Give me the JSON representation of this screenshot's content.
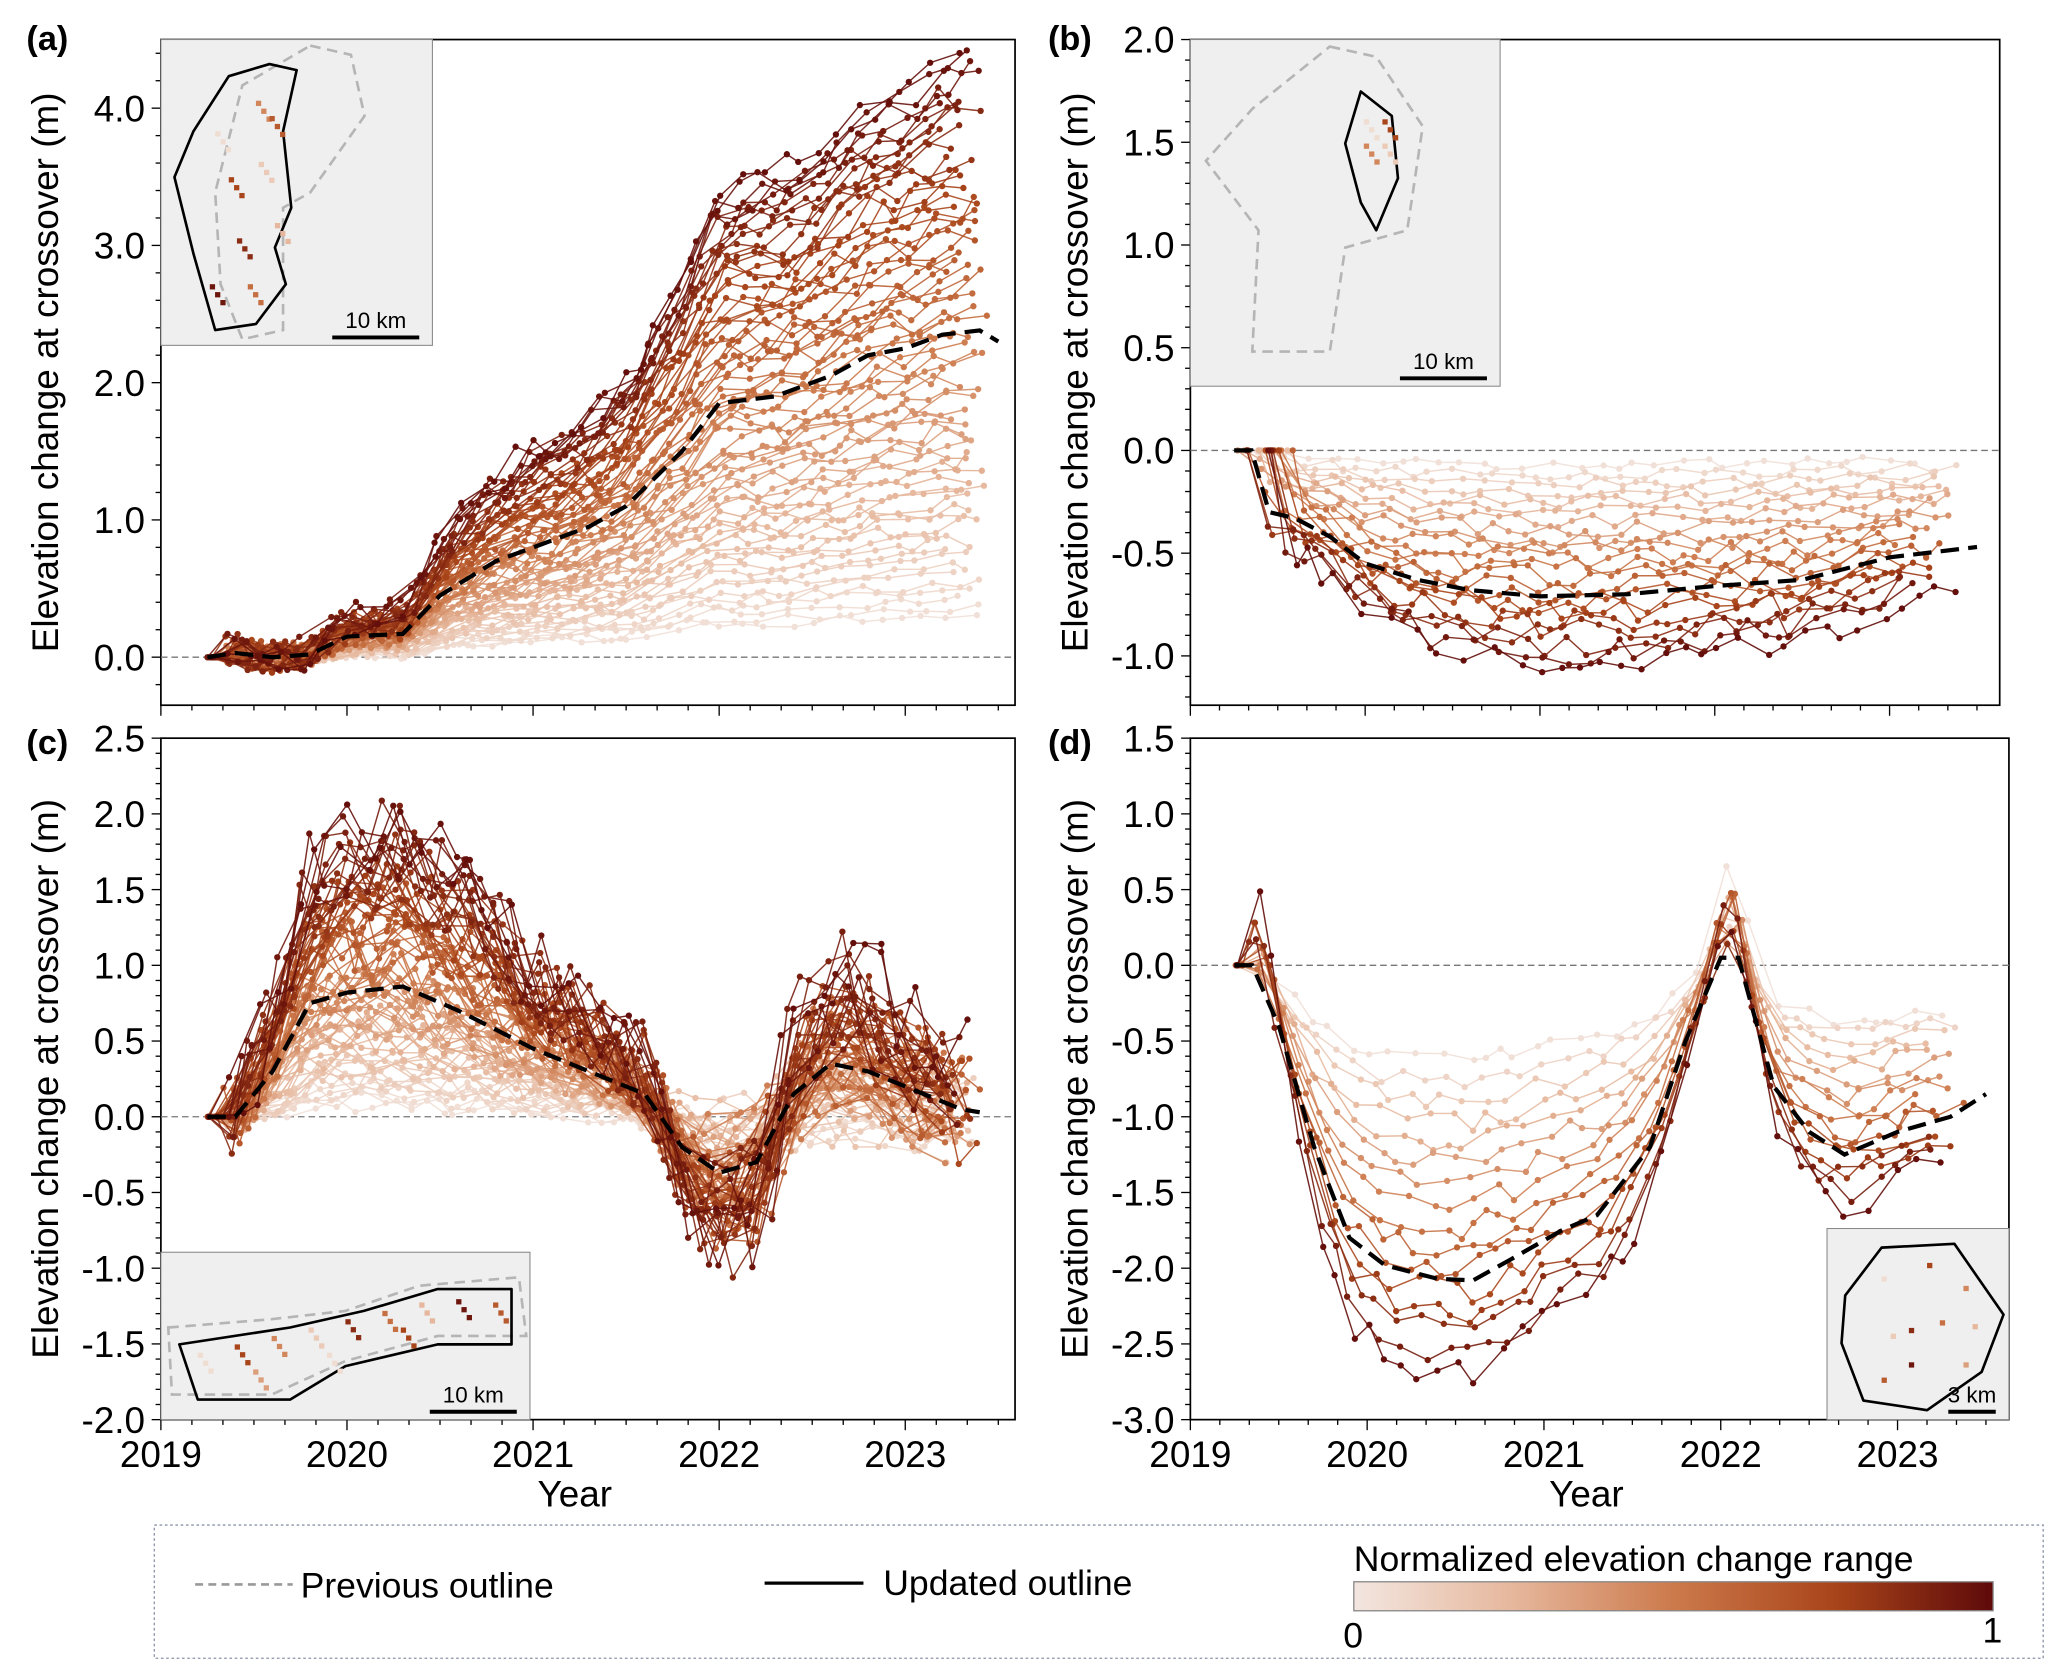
{
  "chart_data": [
    {
      "panel": "(a)",
      "type": "line",
      "xlabel": "",
      "ylabel": "Elevation change at crossover (m)",
      "xlim": [
        2019,
        2023.59
      ],
      "ylim": [
        -0.35,
        4.5
      ],
      "xticks": [
        2019,
        2020,
        2021,
        2022,
        2023
      ],
      "yticks": [
        0.0,
        1.0,
        2.0,
        3.0,
        4.0
      ],
      "ytick_labels": [
        "0.0",
        "1.0",
        "2.0",
        "3.0",
        "4.0"
      ],
      "mean_series": {
        "name": "Mean",
        "x": [
          2019.25,
          2019.4,
          2019.6,
          2019.8,
          2020.0,
          2020.3,
          2020.5,
          2020.8,
          2021.0,
          2021.3,
          2021.5,
          2021.8,
          2022.0,
          2022.3,
          2022.6,
          2022.8,
          2023.0,
          2023.2,
          2023.4,
          2023.5
        ],
        "y": [
          0,
          0.03,
          0,
          0.02,
          0.15,
          0.17,
          0.45,
          0.7,
          0.8,
          0.95,
          1.1,
          1.5,
          1.85,
          1.9,
          2.05,
          2.2,
          2.25,
          2.35,
          2.38,
          2.3
        ]
      },
      "n_series": 70,
      "scale_range": [
        0.13,
        1.85
      ],
      "noise": 0.06,
      "start_range": [
        2019.25,
        2019.35
      ],
      "end_range": [
        2023.3,
        2023.45
      ],
      "inset_scalebar": "10 km"
    },
    {
      "panel": "(b)",
      "type": "line",
      "xlabel": "",
      "ylabel": "Elevation change at crossover (m)",
      "xlim": [
        2019,
        2023.63
      ],
      "ylim": [
        -1.24,
        2.0
      ],
      "xticks": [
        2019,
        2020,
        2021,
        2022,
        2023
      ],
      "yticks": [
        -1.0,
        -0.5,
        0.0,
        0.5,
        1.0,
        1.5,
        2.0
      ],
      "ytick_labels": [
        "-1.0",
        "-0.5",
        "0.0",
        "0.5",
        "1.0",
        "1.5",
        "2.0"
      ],
      "mean_series": {
        "name": "Mean",
        "x": [
          2019.25,
          2019.35,
          2019.45,
          2019.6,
          2019.8,
          2020.0,
          2020.3,
          2020.6,
          2021.0,
          2021.5,
          2022.0,
          2022.5,
          2023.0,
          2023.5
        ],
        "y": [
          0,
          0,
          -0.3,
          -0.33,
          -0.42,
          -0.55,
          -0.63,
          -0.68,
          -0.71,
          -0.7,
          -0.66,
          -0.63,
          -0.52,
          -0.47
        ]
      },
      "n_series": 22,
      "scale_range": [
        0.1,
        1.45
      ],
      "noise": 0.04,
      "start_range": [
        2019.25,
        2019.6
      ],
      "end_range": [
        2023.1,
        2023.45
      ],
      "inset_scalebar": "10 km"
    },
    {
      "panel": "(c)",
      "type": "line",
      "xlabel": "Year",
      "ylabel": "Elevation change at crossover (m)",
      "xlim": [
        2019,
        2023.59
      ],
      "ylim": [
        -2.0,
        2.5
      ],
      "xticks": [
        2019,
        2020,
        2021,
        2022,
        2023
      ],
      "yticks": [
        -2.0,
        -1.5,
        -1.0,
        -0.5,
        0.0,
        0.5,
        1.0,
        1.5,
        2.0,
        2.5
      ],
      "ytick_labels": [
        "-2.0",
        "-1.5",
        "-1.0",
        "-0.5",
        "0.0",
        "0.5",
        "1.0",
        "1.5",
        "2.0",
        "2.5"
      ],
      "mean_series": {
        "name": "Mean",
        "x": [
          2019.25,
          2019.4,
          2019.6,
          2019.8,
          2020.0,
          2020.3,
          2020.6,
          2021.0,
          2021.3,
          2021.6,
          2021.8,
          2022.0,
          2022.2,
          2022.4,
          2022.6,
          2022.8,
          2023.0,
          2023.3,
          2023.4
        ],
        "y": [
          0,
          0,
          0.3,
          0.75,
          0.82,
          0.86,
          0.7,
          0.45,
          0.3,
          0.15,
          -0.2,
          -0.37,
          -0.3,
          0.15,
          0.35,
          0.3,
          0.2,
          0.05,
          0.03
        ]
      },
      "n_series": 75,
      "scale_range": [
        0.1,
        2.25
      ],
      "noise": 0.12,
      "start_range": [
        2019.25,
        2019.4
      ],
      "end_range": [
        2023.2,
        2023.45
      ],
      "inset_scalebar": "10 km"
    },
    {
      "panel": "(d)",
      "type": "line",
      "xlabel": "Year",
      "ylabel": "Elevation change at crossover (m)",
      "xlim": [
        2019,
        2023.63
      ],
      "ylim": [
        -3.0,
        1.5
      ],
      "xticks": [
        2019,
        2020,
        2021,
        2022,
        2023
      ],
      "yticks": [
        -3.0,
        -2.5,
        -2.0,
        -1.5,
        -1.0,
        -0.5,
        0.0,
        0.5,
        1.0,
        1.5
      ],
      "ytick_labels": [
        "-3.0",
        "-2.5",
        "-2.0",
        "-1.5",
        "-1.0",
        "-0.5",
        "0.0",
        "0.5",
        "1.0",
        "1.5"
      ],
      "mean_series": {
        "name": "Mean",
        "x": [
          2019.25,
          2019.35,
          2019.5,
          2019.7,
          2019.9,
          2020.1,
          2020.4,
          2020.6,
          2020.8,
          2021.1,
          2021.3,
          2021.6,
          2021.8,
          2022.0,
          2022.1,
          2022.3,
          2022.5,
          2022.7,
          2023.0,
          2023.3,
          2023.5
        ],
        "y": [
          0,
          0,
          -0.4,
          -1.2,
          -1.8,
          -1.98,
          -2.07,
          -2.08,
          -1.95,
          -1.75,
          -1.65,
          -1.2,
          -0.5,
          0.05,
          0.05,
          -0.8,
          -1.1,
          -1.25,
          -1.1,
          -1.0,
          -0.85
        ]
      },
      "n_series": 16,
      "scale_range": [
        0.3,
        1.3
      ],
      "noise": 0.06,
      "start_range": [
        2019.25,
        2019.3
      ],
      "end_range": [
        2023.2,
        2023.45
      ],
      "inset_scalebar": "3 km"
    }
  ],
  "legend": {
    "previous_outline": "Previous outline",
    "updated_outline": "Updated outline",
    "colorbar_title": "Normalized elevation change range",
    "colorbar_min": "0",
    "colorbar_max": "1"
  },
  "colors": {
    "ramp": [
      "#f3e6e0",
      "#e6b79c",
      "#cc7a4c",
      "#a9451a",
      "#5e0a0a"
    ],
    "mean": "#000000",
    "zero_line": "#777777",
    "outline_prev": "#b5b5b5"
  }
}
